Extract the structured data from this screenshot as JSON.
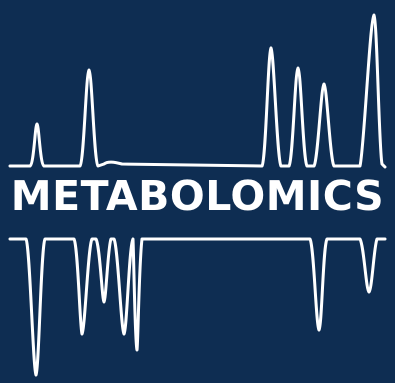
{
  "logo": {
    "wordmark": "METABOLOMICS",
    "background_color": "#0e2d52",
    "foreground_color": "#ffffff",
    "graphic": "mirrored-spectrum-peaks"
  }
}
